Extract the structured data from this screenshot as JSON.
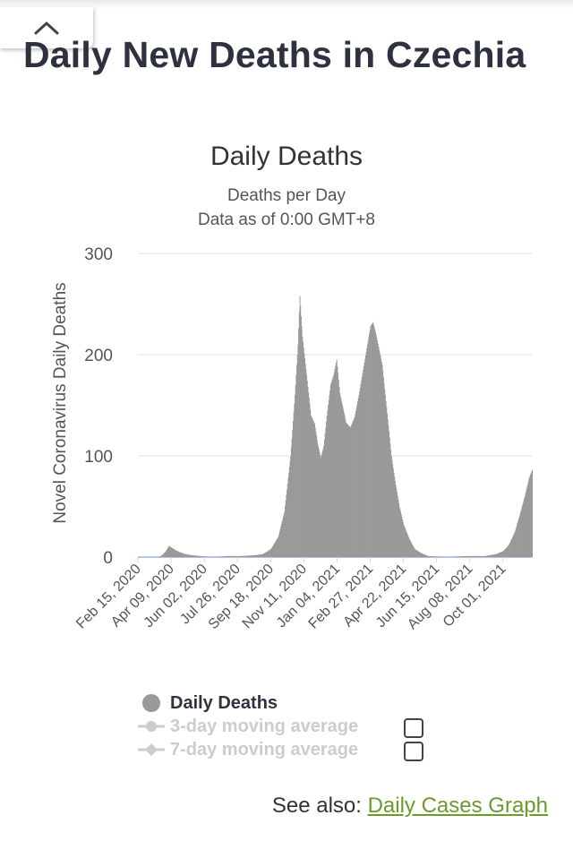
{
  "header": {
    "collapse_icon": "chevron-up-icon",
    "title": "Daily New Deaths in Czechia"
  },
  "chart_data": {
    "type": "bar",
    "title": "Daily Deaths",
    "subtitle_lines": [
      "Deaths per Day",
      "Data as of 0:00 GMT+8"
    ],
    "xlabel": "",
    "ylabel": "Novel Coronavirus Daily Deaths",
    "ylim": [
      0,
      300
    ],
    "yticks": [
      0,
      100,
      200,
      300
    ],
    "grid": true,
    "x_start": "2020-02-15",
    "x_end": "2021-11-17",
    "x_tick_labels": [
      "Feb 15, 2020",
      "Apr 09, 2020",
      "Jun 02, 2020",
      "Jul 26, 2020",
      "Sep 18, 2020",
      "Nov 11, 2020",
      "Jan 04, 2021",
      "Feb 27, 2021",
      "Apr 22, 2021",
      "Jun 15, 2021",
      "Aug 08, 2021",
      "Oct 01, 2021"
    ],
    "bar_color": "#999999",
    "series": [
      {
        "name": "Daily Deaths",
        "points": [
          [
            "2020-02-15",
            0
          ],
          [
            "2020-03-20",
            0
          ],
          [
            "2020-03-25",
            2
          ],
          [
            "2020-03-30",
            5
          ],
          [
            "2020-04-05",
            11
          ],
          [
            "2020-04-10",
            9
          ],
          [
            "2020-04-15",
            7
          ],
          [
            "2020-04-22",
            5
          ],
          [
            "2020-05-01",
            3
          ],
          [
            "2020-05-10",
            2
          ],
          [
            "2020-05-25",
            1
          ],
          [
            "2020-06-15",
            0
          ],
          [
            "2020-07-10",
            1
          ],
          [
            "2020-08-01",
            1
          ],
          [
            "2020-08-25",
            2
          ],
          [
            "2020-09-05",
            3
          ],
          [
            "2020-09-18",
            8
          ],
          [
            "2020-09-30",
            20
          ],
          [
            "2020-10-10",
            45
          ],
          [
            "2020-10-20",
            100
          ],
          [
            "2020-10-27",
            160
          ],
          [
            "2020-11-01",
            210
          ],
          [
            "2020-11-04",
            258
          ],
          [
            "2020-11-08",
            218
          ],
          [
            "2020-11-15",
            180
          ],
          [
            "2020-11-22",
            140
          ],
          [
            "2020-11-28",
            132
          ],
          [
            "2020-12-03",
            112
          ],
          [
            "2020-12-08",
            98
          ],
          [
            "2020-12-13",
            110
          ],
          [
            "2020-12-18",
            140
          ],
          [
            "2020-12-24",
            170
          ],
          [
            "2020-12-29",
            180
          ],
          [
            "2021-01-03",
            195
          ],
          [
            "2021-01-08",
            162
          ],
          [
            "2021-01-13",
            148
          ],
          [
            "2021-01-18",
            133
          ],
          [
            "2021-01-25",
            128
          ],
          [
            "2021-02-01",
            138
          ],
          [
            "2021-02-08",
            160
          ],
          [
            "2021-02-15",
            185
          ],
          [
            "2021-02-22",
            210
          ],
          [
            "2021-02-27",
            228
          ],
          [
            "2021-03-03",
            232
          ],
          [
            "2021-03-08",
            220
          ],
          [
            "2021-03-13",
            205
          ],
          [
            "2021-03-18",
            190
          ],
          [
            "2021-03-23",
            160
          ],
          [
            "2021-03-28",
            130
          ],
          [
            "2021-04-02",
            100
          ],
          [
            "2021-04-08",
            75
          ],
          [
            "2021-04-15",
            50
          ],
          [
            "2021-04-22",
            32
          ],
          [
            "2021-05-01",
            18
          ],
          [
            "2021-05-10",
            8
          ],
          [
            "2021-05-20",
            4
          ],
          [
            "2021-06-01",
            1
          ],
          [
            "2021-07-01",
            0
          ],
          [
            "2021-08-01",
            1
          ],
          [
            "2021-09-01",
            1
          ],
          [
            "2021-09-20",
            3
          ],
          [
            "2021-10-01",
            6
          ],
          [
            "2021-10-10",
            12
          ],
          [
            "2021-10-20",
            25
          ],
          [
            "2021-10-28",
            42
          ],
          [
            "2021-11-05",
            60
          ],
          [
            "2021-11-12",
            78
          ],
          [
            "2021-11-17",
            86
          ]
        ]
      }
    ],
    "legend_position": "bottom"
  },
  "legend": [
    {
      "label": "Daily Deaths",
      "marker": "circle",
      "color": "#999999",
      "active": true
    },
    {
      "label": "3-day moving average",
      "marker": "circle-line",
      "color": "#cccccc",
      "active": false
    },
    {
      "label": "7-day moving average",
      "marker": "diamond-line",
      "color": "#cccccc",
      "active": false
    }
  ],
  "see_also": {
    "prefix": "See also: ",
    "link_text": "Daily Cases Graph"
  }
}
